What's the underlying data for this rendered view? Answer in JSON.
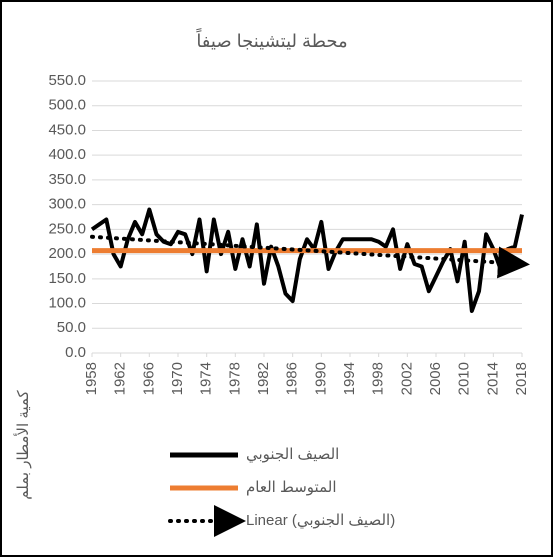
{
  "chart_data": {
    "type": "line",
    "title": "محطة ليتشينجا صيفاً",
    "y_label": "كمية الأمطار بملم",
    "x": [
      1958,
      1959,
      1960,
      1961,
      1962,
      1963,
      1964,
      1965,
      1966,
      1967,
      1968,
      1969,
      1970,
      1971,
      1972,
      1973,
      1974,
      1975,
      1976,
      1977,
      1978,
      1979,
      1980,
      1981,
      1982,
      1983,
      1984,
      1985,
      1986,
      1987,
      1988,
      1989,
      1990,
      1991,
      1992,
      1993,
      1994,
      1995,
      1996,
      1997,
      1998,
      1999,
      2000,
      2001,
      2002,
      2003,
      2004,
      2005,
      2006,
      2007,
      2008,
      2009,
      2010,
      2011,
      2012,
      2013,
      2014,
      2015,
      2016,
      2017,
      2018
    ],
    "series": [
      {
        "name": "الصيف الجنوبي",
        "color": "#000000",
        "style": "solid",
        "values": [
          250,
          260,
          270,
          200,
          175,
          230,
          265,
          240,
          290,
          240,
          225,
          220,
          245,
          240,
          200,
          270,
          165,
          270,
          200,
          245,
          170,
          230,
          175,
          260,
          140,
          215,
          175,
          120,
          105,
          190,
          230,
          210,
          265,
          170,
          205,
          230,
          230,
          230,
          230,
          230,
          225,
          215,
          250,
          170,
          220,
          180,
          175,
          125,
          155,
          185,
          210,
          145,
          225,
          85,
          125,
          240,
          210,
          170,
          210,
          215,
          280
        ]
      },
      {
        "name": "المتوسط العام",
        "color": "#ed7d31",
        "style": "solid",
        "x": [
          1958,
          2018
        ],
        "values": [
          207,
          207
        ]
      },
      {
        "name": "Linear (الصيف الجنوبي)",
        "color": "#000000",
        "style": "dotted",
        "x": [
          1958,
          2018
        ],
        "values": [
          235,
          180
        ]
      }
    ],
    "xlim": [
      1958,
      2018
    ],
    "xticks": [
      1958,
      1962,
      1966,
      1970,
      1974,
      1978,
      1982,
      1986,
      1990,
      1994,
      1998,
      2002,
      2006,
      2010,
      2014,
      2018
    ],
    "ylim": [
      0,
      550
    ],
    "yticks": [
      {
        "value": 0,
        "label": "0.0"
      },
      {
        "value": 50,
        "label": "50.0"
      },
      {
        "value": 100,
        "label": "100.0"
      },
      {
        "value": 150,
        "label": "150.0"
      },
      {
        "value": 200,
        "label": "200.0"
      },
      {
        "value": 250,
        "label": "250.0"
      },
      {
        "value": 300,
        "label": "300.0"
      },
      {
        "value": 350,
        "label": "350.0"
      },
      {
        "value": 400,
        "label": "400.0"
      },
      {
        "value": 450,
        "label": "450.0"
      },
      {
        "value": 500,
        "label": "500.0"
      },
      {
        "value": 550,
        "label": "550.0"
      }
    ],
    "grid": true,
    "legend": "bottom"
  }
}
